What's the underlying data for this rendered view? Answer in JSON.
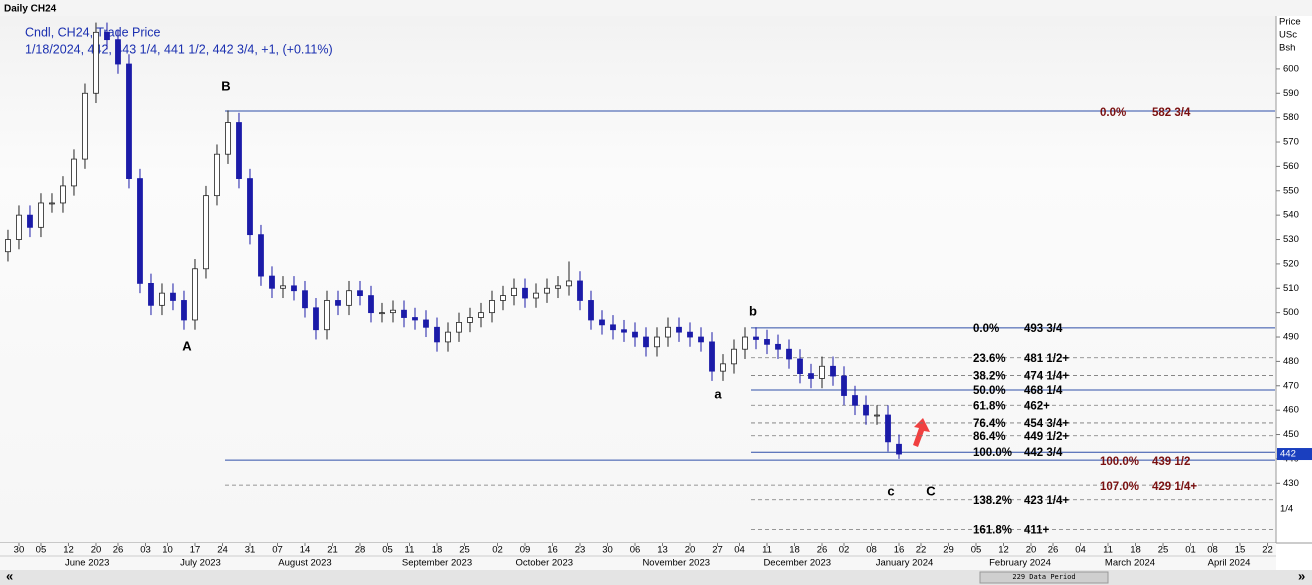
{
  "chart_data": {
    "type": "candlestick",
    "title": "Daily CH24",
    "legend_lines": [
      "Cndl, CH24, Trade Price",
      "1/18/2024, 442, 443 1/4, 441 1/2, 442 3/4, +1, (+0.11%)"
    ],
    "y_axis_label": [
      "Price",
      "USc",
      "Bsh"
    ],
    "x": [
      -2,
      0,
      2,
      4,
      6,
      8,
      10,
      12,
      14,
      16,
      18,
      20,
      22,
      24,
      26,
      28,
      30,
      32,
      34,
      36,
      38,
      40,
      42,
      44,
      46,
      48,
      50,
      52,
      54,
      56,
      58,
      60,
      62,
      64,
      66,
      68,
      70,
      72,
      74,
      76,
      78,
      80,
      82,
      84,
      86,
      88,
      90,
      92,
      94,
      96,
      98,
      100,
      102,
      104,
      106,
      108,
      110,
      112,
      114,
      116,
      118,
      120,
      122,
      124,
      126,
      128,
      130,
      132,
      134,
      136,
      138,
      140,
      142,
      144,
      146,
      148,
      150,
      152,
      154,
      156,
      158,
      160
    ],
    "open": [
      525,
      530,
      540,
      535,
      545,
      545,
      552,
      563,
      590,
      615,
      612,
      602,
      555,
      512,
      503,
      508,
      505,
      497,
      518,
      548,
      565,
      578,
      555,
      532,
      515,
      510,
      511,
      509,
      502,
      493,
      505,
      503,
      509,
      507,
      500,
      500,
      501,
      498,
      497,
      494,
      488,
      492,
      496,
      498,
      500,
      505,
      507,
      510,
      506,
      508,
      510,
      511,
      513,
      505,
      497,
      495,
      493,
      492,
      490,
      486,
      490,
      494,
      492,
      490,
      488,
      476,
      479,
      485,
      490,
      489,
      487,
      485,
      481,
      475,
      473,
      478,
      474,
      466,
      462,
      458,
      458,
      446
    ],
    "high": [
      534,
      544,
      544,
      549,
      549,
      556,
      567,
      594,
      619,
      619,
      616,
      606,
      559,
      516,
      512,
      512,
      509,
      522,
      552,
      569,
      583,
      582,
      559,
      536,
      519,
      515,
      515,
      513,
      506,
      509,
      509,
      513,
      513,
      511,
      504,
      505,
      505,
      502,
      501,
      498,
      496,
      500,
      502,
      504,
      509,
      511,
      514,
      514,
      512,
      514,
      515,
      521,
      517,
      509,
      501,
      499,
      497,
      496,
      494,
      494,
      498,
      498,
      496,
      494,
      492,
      483,
      489,
      494,
      494,
      493,
      491,
      489,
      485,
      479,
      482,
      482,
      478,
      470,
      466,
      462,
      462,
      450
    ],
    "low": [
      521,
      526,
      531,
      531,
      541,
      541,
      548,
      559,
      586,
      608,
      598,
      551,
      508,
      499,
      499,
      501,
      493,
      493,
      514,
      544,
      561,
      551,
      528,
      511,
      506,
      506,
      505,
      498,
      489,
      489,
      499,
      499,
      503,
      496,
      496,
      496,
      494,
      493,
      490,
      484,
      484,
      488,
      492,
      494,
      496,
      501,
      503,
      502,
      502,
      504,
      506,
      507,
      501,
      493,
      491,
      489,
      488,
      486,
      482,
      482,
      486,
      488,
      486,
      484,
      472,
      472,
      475,
      481,
      485,
      483,
      481,
      477,
      471,
      469,
      469,
      470,
      462,
      458,
      454,
      454,
      443,
      440
    ],
    "close": [
      530,
      540,
      535,
      545,
      545,
      552,
      563,
      590,
      615,
      612,
      602,
      555,
      512,
      503,
      508,
      505,
      497,
      518,
      548,
      565,
      578,
      555,
      532,
      515,
      510,
      511,
      509,
      502,
      493,
      505,
      503,
      509,
      507,
      500,
      500,
      501,
      498,
      497,
      494,
      488,
      492,
      496,
      498,
      500,
      505,
      507,
      510,
      506,
      508,
      510,
      511,
      513,
      505,
      497,
      495,
      493,
      492,
      490,
      486,
      490,
      494,
      492,
      490,
      488,
      476,
      479,
      485,
      490,
      489,
      487,
      485,
      481,
      475,
      473,
      478,
      474,
      466,
      462,
      458,
      458,
      447,
      442
    ],
    "up_color": "#ffffff",
    "down_color": "#1b1ba8",
    "ylim": [
      405.5,
      621.7
    ],
    "yticks": [
      430,
      440,
      450,
      460,
      470,
      480,
      490,
      500,
      510,
      520,
      530,
      540,
      550,
      560,
      570,
      580,
      590,
      600
    ],
    "xlim": [
      -3.45,
      228.36
    ],
    "xticks": [
      {
        "value": 0,
        "label": "30"
      },
      {
        "value": 4,
        "label": "05"
      },
      {
        "value": 9,
        "label": "12"
      },
      {
        "value": 14,
        "label": "20"
      },
      {
        "value": 18,
        "label": "26"
      },
      {
        "value": 23,
        "label": "03"
      },
      {
        "value": 27,
        "label": "10"
      },
      {
        "value": 32,
        "label": "17"
      },
      {
        "value": 37,
        "label": "24"
      },
      {
        "value": 42,
        "label": "31"
      },
      {
        "value": 47,
        "label": "07"
      },
      {
        "value": 52,
        "label": "14"
      },
      {
        "value": 57,
        "label": "21"
      },
      {
        "value": 62,
        "label": "28"
      },
      {
        "value": 67,
        "label": "05"
      },
      {
        "value": 71,
        "label": "11"
      },
      {
        "value": 76,
        "label": "18"
      },
      {
        "value": 81,
        "label": "25"
      },
      {
        "value": 87,
        "label": "02"
      },
      {
        "value": 92,
        "label": "09"
      },
      {
        "value": 97,
        "label": "16"
      },
      {
        "value": 102,
        "label": "23"
      },
      {
        "value": 107,
        "label": "30"
      },
      {
        "value": 112,
        "label": "06"
      },
      {
        "value": 117,
        "label": "13"
      },
      {
        "value": 122,
        "label": "20"
      },
      {
        "value": 127,
        "label": "27"
      },
      {
        "value": 131,
        "label": "04"
      },
      {
        "value": 136,
        "label": "11"
      },
      {
        "value": 141,
        "label": "18"
      },
      {
        "value": 146,
        "label": "26"
      },
      {
        "value": 150,
        "label": "02"
      },
      {
        "value": 155,
        "label": "08"
      },
      {
        "value": 160,
        "label": "16"
      },
      {
        "value": 164,
        "label": "22"
      },
      {
        "value": 169,
        "label": "29"
      },
      {
        "value": 174,
        "label": "05"
      },
      {
        "value": 179,
        "label": "12"
      },
      {
        "value": 184,
        "label": "20"
      },
      {
        "value": 188,
        "label": "26"
      },
      {
        "value": 193,
        "label": "04"
      },
      {
        "value": 198,
        "label": "11"
      },
      {
        "value": 203,
        "label": "18"
      },
      {
        "value": 208,
        "label": "25"
      },
      {
        "value": 213,
        "label": "01"
      },
      {
        "value": 217,
        "label": "08"
      },
      {
        "value": 222,
        "label": "15"
      },
      {
        "value": 227,
        "label": "22"
      }
    ],
    "x_groups": [
      {
        "value": 12.4,
        "label": "June 2023"
      },
      {
        "value": 33,
        "label": "July 2023"
      },
      {
        "value": 52,
        "label": "August 2023"
      },
      {
        "value": 76,
        "label": "September 2023"
      },
      {
        "value": 95.5,
        "label": "October 2023"
      },
      {
        "value": 119.5,
        "label": "November 2023"
      },
      {
        "value": 141.5,
        "label": "December 2023"
      },
      {
        "value": 161,
        "label": "January 2024"
      },
      {
        "value": 182,
        "label": "February 2024"
      },
      {
        "value": 202,
        "label": "March 2024"
      },
      {
        "value": 220,
        "label": "April 2024"
      }
    ],
    "fib_levels": [
      {
        "pct": "0.0%",
        "label": "493 3/4",
        "value": 493.75,
        "style": "solid",
        "group": "upper"
      },
      {
        "pct": "23.6%",
        "label": "481 1/2+",
        "value": 481.5,
        "style": "dashed",
        "group": "upper"
      },
      {
        "pct": "38.2%",
        "label": "474 1/4+",
        "value": 474.25,
        "style": "dashed",
        "group": "upper"
      },
      {
        "pct": "50.0%",
        "label": "468 1/4",
        "value": 468.25,
        "style": "solid",
        "group": "upper"
      },
      {
        "pct": "61.8%",
        "label": "462+",
        "value": 462,
        "style": "dashed",
        "group": "upper"
      },
      {
        "pct": "76.4%",
        "label": "454 3/4+",
        "value": 454.75,
        "style": "dashed",
        "group": "upper"
      },
      {
        "pct": "86.4%",
        "label": "449 1/2+",
        "value": 449.5,
        "style": "dashed",
        "group": "upper"
      },
      {
        "pct": "100.0%",
        "label": "442 3/4",
        "value": 442.75,
        "style": "solid",
        "group": "upper"
      },
      {
        "pct": "138.2%",
        "label": "423 1/4+",
        "value": 423.25,
        "style": "dashed",
        "group": "upper"
      },
      {
        "pct": "161.8%",
        "label": "411+",
        "value": 411,
        "style": "dashed",
        "group": "upper"
      },
      {
        "pct": "0.0%",
        "label": "582 3/4",
        "value": 582.75,
        "style": "solid",
        "group": "lower"
      },
      {
        "pct": "100.0%",
        "label": "439 1/2",
        "value": 439.5,
        "style": "solid",
        "group": "lower"
      },
      {
        "pct": "107.0%",
        "label": "429 1/4+",
        "value": 429.25,
        "style": "dashed",
        "group": "lower"
      }
    ],
    "wave_labels": [
      "A",
      "B",
      "a",
      "b",
      "c",
      "C"
    ],
    "last_price": 442,
    "scale_note": "1/4",
    "data_period": "229 Data Period"
  }
}
